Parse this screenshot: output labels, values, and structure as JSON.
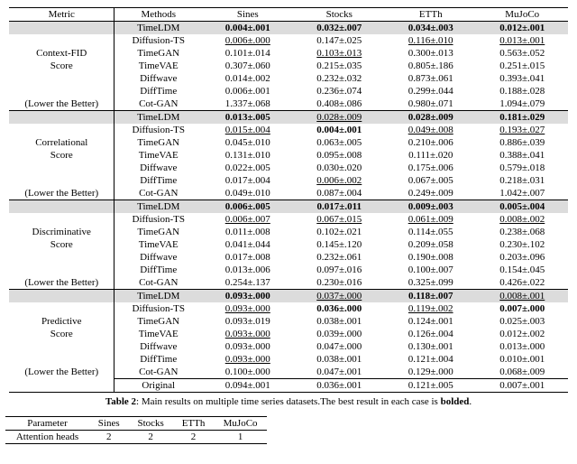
{
  "main_table": {
    "header": [
      "Metric",
      "Methods",
      "Sines",
      "Stocks",
      "ETTh",
      "MuJoCo"
    ],
    "sections": [
      {
        "metric_lines": [
          "",
          "",
          "Context-FID",
          "Score",
          "",
          "",
          "(Lower the Better)"
        ],
        "rows": [
          {
            "method": "TimeLDM",
            "hl": true,
            "vals": [
              {
                "t": "0.004±.001",
                "b": true
              },
              {
                "t": "0.032±.007",
                "b": true
              },
              {
                "t": "0.034±.003",
                "b": true
              },
              {
                "t": "0.012±.001",
                "b": true
              }
            ]
          },
          {
            "method": "Diffusion-TS",
            "vals": [
              {
                "t": "0.006±.000",
                "u": true
              },
              {
                "t": "0.147±.025"
              },
              {
                "t": "0.116±.010",
                "u": true
              },
              {
                "t": "0.013±.001",
                "u": true
              }
            ]
          },
          {
            "method": "TimeGAN",
            "vals": [
              {
                "t": "0.101±.014"
              },
              {
                "t": "0.103±.013",
                "u": true
              },
              {
                "t": "0.300±.013"
              },
              {
                "t": "0.563±.052"
              }
            ]
          },
          {
            "method": "TimeVAE",
            "vals": [
              {
                "t": "0.307±.060"
              },
              {
                "t": "0.215±.035"
              },
              {
                "t": "0.805±.186"
              },
              {
                "t": "0.251±.015"
              }
            ]
          },
          {
            "method": "Diffwave",
            "vals": [
              {
                "t": "0.014±.002"
              },
              {
                "t": "0.232±.032"
              },
              {
                "t": "0.873±.061"
              },
              {
                "t": "0.393±.041"
              }
            ]
          },
          {
            "method": "DiffTime",
            "vals": [
              {
                "t": "0.006±.001"
              },
              {
                "t": "0.236±.074"
              },
              {
                "t": "0.299±.044"
              },
              {
                "t": "0.188±.028"
              }
            ]
          },
          {
            "method": "Cot-GAN",
            "vals": [
              {
                "t": "1.337±.068"
              },
              {
                "t": "0.408±.086"
              },
              {
                "t": "0.980±.071"
              },
              {
                "t": "1.094±.079"
              }
            ]
          }
        ]
      },
      {
        "metric_lines": [
          "",
          "",
          "Correlational",
          "Score",
          "",
          "",
          "(Lower the Better)"
        ],
        "rows": [
          {
            "method": "TimeLDM",
            "hl": true,
            "vals": [
              {
                "t": "0.013±.005",
                "b": true
              },
              {
                "t": "0.028±.009",
                "u": true
              },
              {
                "t": "0.028±.009",
                "b": true
              },
              {
                "t": "0.181±.029",
                "b": true
              }
            ]
          },
          {
            "method": "Diffusion-TS",
            "vals": [
              {
                "t": "0.015±.004",
                "u": true
              },
              {
                "t": "0.004±.001",
                "b": true
              },
              {
                "t": "0.049±.008",
                "u": true
              },
              {
                "t": "0.193±.027",
                "u": true
              }
            ]
          },
          {
            "method": "TimeGAN",
            "vals": [
              {
                "t": "0.045±.010"
              },
              {
                "t": "0.063±.005"
              },
              {
                "t": "0.210±.006"
              },
              {
                "t": "0.886±.039"
              }
            ]
          },
          {
            "method": "TimeVAE",
            "vals": [
              {
                "t": "0.131±.010"
              },
              {
                "t": "0.095±.008"
              },
              {
                "t": "0.111±.020"
              },
              {
                "t": "0.388±.041"
              }
            ]
          },
          {
            "method": "Diffwave",
            "vals": [
              {
                "t": "0.022±.005"
              },
              {
                "t": "0.030±.020"
              },
              {
                "t": "0.175±.006"
              },
              {
                "t": "0.579±.018"
              }
            ]
          },
          {
            "method": "DiffTime",
            "vals": [
              {
                "t": "0.017±.004"
              },
              {
                "t": "0.006±.002",
                "u": true
              },
              {
                "t": "0.067±.005"
              },
              {
                "t": "0.218±.031"
              }
            ]
          },
          {
            "method": "Cot-GAN",
            "vals": [
              {
                "t": "0.049±.010"
              },
              {
                "t": "0.087±.004"
              },
              {
                "t": "0.249±.009"
              },
              {
                "t": "1.042±.007"
              }
            ]
          }
        ]
      },
      {
        "metric_lines": [
          "",
          "",
          "Discriminative",
          "Score",
          "",
          "",
          "(Lower the Better)"
        ],
        "rows": [
          {
            "method": "TimeLDM",
            "hl": true,
            "vals": [
              {
                "t": "0.006±.005",
                "b": true
              },
              {
                "t": "0.017±.011",
                "b": true
              },
              {
                "t": "0.009±.003",
                "b": true
              },
              {
                "t": "0.005±.004",
                "b": true
              }
            ]
          },
          {
            "method": "Diffusion-TS",
            "vals": [
              {
                "t": "0.006±.007",
                "u": true
              },
              {
                "t": "0.067±.015",
                "u": true
              },
              {
                "t": "0.061±.009",
                "u": true
              },
              {
                "t": "0.008±.002",
                "u": true
              }
            ]
          },
          {
            "method": "TimeGAN",
            "vals": [
              {
                "t": "0.011±.008"
              },
              {
                "t": "0.102±.021"
              },
              {
                "t": "0.114±.055"
              },
              {
                "t": "0.238±.068"
              }
            ]
          },
          {
            "method": "TimeVAE",
            "vals": [
              {
                "t": "0.041±.044"
              },
              {
                "t": "0.145±.120"
              },
              {
                "t": "0.209±.058"
              },
              {
                "t": "0.230±.102"
              }
            ]
          },
          {
            "method": "Diffwave",
            "vals": [
              {
                "t": "0.017±.008"
              },
              {
                "t": "0.232±.061"
              },
              {
                "t": "0.190±.008"
              },
              {
                "t": "0.203±.096"
              }
            ]
          },
          {
            "method": "DiffTime",
            "vals": [
              {
                "t": "0.013±.006"
              },
              {
                "t": "0.097±.016"
              },
              {
                "t": "0.100±.007"
              },
              {
                "t": "0.154±.045"
              }
            ]
          },
          {
            "method": "Cot-GAN",
            "vals": [
              {
                "t": "0.254±.137"
              },
              {
                "t": "0.230±.016"
              },
              {
                "t": "0.325±.099"
              },
              {
                "t": "0.426±.022"
              }
            ]
          }
        ]
      },
      {
        "metric_lines": [
          "",
          "",
          "Predictive",
          "Score",
          "",
          "",
          "(Lower the Better)",
          "",
          "Original"
        ],
        "rows": [
          {
            "method": "TimeLDM",
            "hl": true,
            "vals": [
              {
                "t": "0.093±.000",
                "b": true
              },
              {
                "t": "0.037±.000",
                "u": true
              },
              {
                "t": "0.118±.007",
                "b": true
              },
              {
                "t": "0.008±.001",
                "u": true
              }
            ]
          },
          {
            "method": "Diffusion-TS",
            "vals": [
              {
                "t": "0.093±.000",
                "u": true
              },
              {
                "t": "0.036±.000",
                "b": true
              },
              {
                "t": "0.119±.002",
                "u": true
              },
              {
                "t": "0.007±.000",
                "b": true
              }
            ]
          },
          {
            "method": "TimeGAN",
            "vals": [
              {
                "t": "0.093±.019"
              },
              {
                "t": "0.038±.001"
              },
              {
                "t": "0.124±.001"
              },
              {
                "t": "0.025±.003"
              }
            ]
          },
          {
            "method": "TimeVAE",
            "vals": [
              {
                "t": "0.093±.000",
                "u": true
              },
              {
                "t": "0.039±.000"
              },
              {
                "t": "0.126±.004"
              },
              {
                "t": "0.012±.002"
              }
            ]
          },
          {
            "method": "Diffwave",
            "vals": [
              {
                "t": "0.093±.000"
              },
              {
                "t": "0.047±.000"
              },
              {
                "t": "0.130±.001"
              },
              {
                "t": "0.013±.000"
              }
            ]
          },
          {
            "method": "DiffTime",
            "vals": [
              {
                "t": "0.093±.000",
                "u": true
              },
              {
                "t": "0.038±.001"
              },
              {
                "t": "0.121±.004"
              },
              {
                "t": "0.010±.001"
              }
            ]
          },
          {
            "method": "Cot-GAN",
            "vals": [
              {
                "t": "0.100±.000"
              },
              {
                "t": "0.047±.001"
              },
              {
                "t": "0.129±.000"
              },
              {
                "t": "0.068±.009"
              }
            ]
          }
        ],
        "original": [
          "0.094±.001",
          "0.036±.001",
          "0.121±.005",
          "0.007±.001"
        ]
      }
    ],
    "caption_pre": "Table 2",
    "caption_text": ": Main results on multiple time series datasets.The best result in each case is ",
    "caption_bold": "bolded",
    "caption_end": "."
  },
  "param_table": {
    "header": [
      "Parameter",
      "Sines",
      "Stocks",
      "ETTh",
      "MuJoCo"
    ],
    "row": [
      "Attention heads",
      "2",
      "2",
      "2",
      "1"
    ]
  }
}
